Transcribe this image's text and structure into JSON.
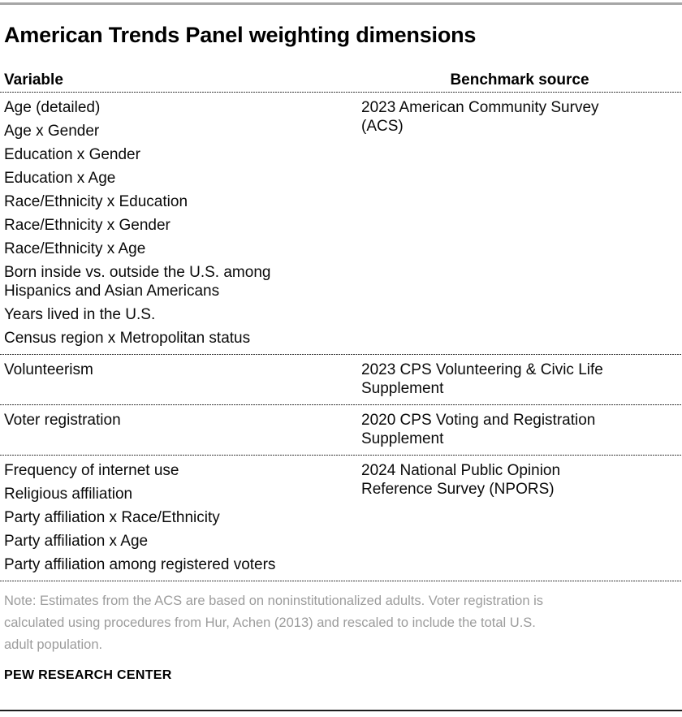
{
  "page": {
    "title": "American Trends Panel weighting dimensions",
    "note": "Note: Estimates from the ACS are based on noninstitutionalized adults. Voter registration is\ncalculated using procedures from Hur, Achen (2013) and rescaled to include the total U.S.\nadult population.",
    "brand": "PEW RESEARCH CENTER"
  },
  "table": {
    "headers": {
      "variable": "Variable",
      "benchmark_source": "Benchmark source"
    },
    "sections": [
      {
        "variables": [
          "Age (detailed)",
          "Age x Gender",
          "Education x Gender",
          "Education x Age",
          "Race/Ethnicity x Education",
          "Race/Ethnicity x Gender",
          "Race/Ethnicity x Age",
          "Born inside vs. outside the U.S. among\nHispanics and Asian Americans",
          "Years lived in the U.S.",
          "Census region x Metropolitan status"
        ],
        "source": "2023 American Community Survey\n(ACS)"
      },
      {
        "variables": [
          "Volunteerism"
        ],
        "source": "2023 CPS Volunteering & Civic Life\nSupplement"
      },
      {
        "variables": [
          "Voter registration"
        ],
        "source": "2020 CPS Voting and Registration\nSupplement"
      },
      {
        "variables": [
          "Frequency of internet use",
          "Religious affiliation",
          "Party affiliation x Race/Ethnicity",
          "Party affiliation x Age",
          "Party affiliation among registered voters"
        ],
        "source": "2024 National Public Opinion\nReference Survey (NPORS)"
      }
    ]
  },
  "colors": {
    "text": "#111111",
    "note_text": "#9c9c9c",
    "top_rule": "#a6a6a6",
    "bottom_rule": "#1d1d1d",
    "divider_dots": "#383838"
  },
  "chart_data": {
    "type": "table",
    "title": "American Trends Panel weighting dimensions",
    "columns": [
      "Variable",
      "Benchmark source"
    ],
    "row_groups": [
      {
        "variables": [
          "Age (detailed)",
          "Age x Gender",
          "Education x Gender",
          "Education x Age",
          "Race/Ethnicity x Education",
          "Race/Ethnicity x Gender",
          "Race/Ethnicity x Age",
          "Born inside vs. outside the U.S. among Hispanics and Asian Americans",
          "Years lived in the U.S.",
          "Census region x Metropolitan status"
        ],
        "benchmark_source": "2023 American Community Survey (ACS)"
      },
      {
        "variables": [
          "Volunteerism"
        ],
        "benchmark_source": "2023 CPS Volunteering & Civic Life Supplement"
      },
      {
        "variables": [
          "Voter registration"
        ],
        "benchmark_source": "2020 CPS Voting and Registration Supplement"
      },
      {
        "variables": [
          "Frequency of internet use",
          "Religious affiliation",
          "Party affiliation x Race/Ethnicity",
          "Party affiliation x Age",
          "Party affiliation among registered voters"
        ],
        "benchmark_source": "2024 National Public Opinion Reference Survey (NPORS)"
      }
    ],
    "note": "Note: Estimates from the ACS are based on noninstitutionalized adults. Voter registration is calculated using procedures from Hur, Achen (2013) and rescaled to include the total U.S. adult population.",
    "source_label": "PEW RESEARCH CENTER"
  }
}
